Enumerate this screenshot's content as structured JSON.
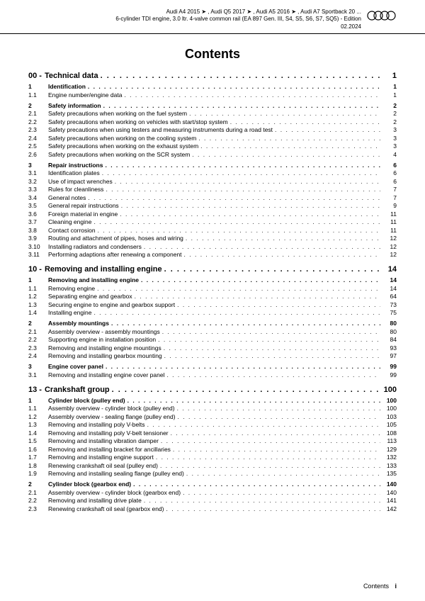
{
  "header": {
    "line1": "Audi A4 2015 ➤ , Audi Q5 2017 ➤ , Audi A5 2016 ➤ , Audi A7 Sportback 20 ...",
    "line2": "6-cylinder TDI engine, 3.0 ltr. 4-valve common rail (EA 897 Gen. III, S4, S5, S6, S7, SQ5) - Edition",
    "line3": "02.2024"
  },
  "title": "Contents",
  "sections": [
    {
      "num": "00 -",
      "title": "Technical data",
      "page": "1",
      "items": [
        {
          "n": "1",
          "t": "Identification",
          "p": "1",
          "b": true,
          "g": false
        },
        {
          "n": "1.1",
          "t": "Engine number/engine data",
          "p": "1",
          "b": false,
          "g": false
        },
        {
          "n": "2",
          "t": "Safety information",
          "p": "2",
          "b": true,
          "g": true
        },
        {
          "n": "2.1",
          "t": "Safety precautions when working on the fuel system",
          "p": "2",
          "b": false,
          "g": false
        },
        {
          "n": "2.2",
          "t": "Safety precautions when working on vehicles with start/stop system",
          "p": "2",
          "b": false,
          "g": false
        },
        {
          "n": "2.3",
          "t": "Safety precautions when using testers and measuring instruments during a road test",
          "p": "3",
          "b": false,
          "g": false
        },
        {
          "n": "2.4",
          "t": "Safety precautions when working on the cooling system",
          "p": "3",
          "b": false,
          "g": false
        },
        {
          "n": "2.5",
          "t": "Safety precautions when working on the exhaust system",
          "p": "3",
          "b": false,
          "g": false
        },
        {
          "n": "2.6",
          "t": "Safety precautions when working on the SCR system",
          "p": "4",
          "b": false,
          "g": false
        },
        {
          "n": "3",
          "t": "Repair instructions",
          "p": "6",
          "b": true,
          "g": true
        },
        {
          "n": "3.1",
          "t": "Identification plates",
          "p": "6",
          "b": false,
          "g": false
        },
        {
          "n": "3.2",
          "t": "Use of impact wrenches",
          "p": "6",
          "b": false,
          "g": false
        },
        {
          "n": "3.3",
          "t": "Rules for cleanliness",
          "p": "7",
          "b": false,
          "g": false
        },
        {
          "n": "3.4",
          "t": "General notes",
          "p": "7",
          "b": false,
          "g": false
        },
        {
          "n": "3.5",
          "t": "General repair instructions",
          "p": "9",
          "b": false,
          "g": false
        },
        {
          "n": "3.6",
          "t": "Foreign material in engine",
          "p": "11",
          "b": false,
          "g": false
        },
        {
          "n": "3.7",
          "t": "Cleaning engine",
          "p": "11",
          "b": false,
          "g": false
        },
        {
          "n": "3.8",
          "t": "Contact corrosion",
          "p": "11",
          "b": false,
          "g": false
        },
        {
          "n": "3.9",
          "t": "Routing and attachment of pipes, hoses and wiring",
          "p": "12",
          "b": false,
          "g": false
        },
        {
          "n": "3.10",
          "t": "Installing radiators and condensers",
          "p": "12",
          "b": false,
          "g": false
        },
        {
          "n": "3.11",
          "t": "Performing adaptions after renewing a component",
          "p": "12",
          "b": false,
          "g": false
        }
      ]
    },
    {
      "num": "10 -",
      "title": "Removing and installing engine",
      "page": "14",
      "items": [
        {
          "n": "1",
          "t": "Removing and installing engine",
          "p": "14",
          "b": true,
          "g": false
        },
        {
          "n": "1.1",
          "t": "Removing engine",
          "p": "14",
          "b": false,
          "g": false
        },
        {
          "n": "1.2",
          "t": "Separating engine and gearbox",
          "p": "64",
          "b": false,
          "g": false
        },
        {
          "n": "1.3",
          "t": "Securing engine to engine and gearbox support",
          "p": "73",
          "b": false,
          "g": false
        },
        {
          "n": "1.4",
          "t": "Installing engine",
          "p": "75",
          "b": false,
          "g": false
        },
        {
          "n": "2",
          "t": "Assembly mountings",
          "p": "80",
          "b": true,
          "g": true
        },
        {
          "n": "2.1",
          "t": "Assembly overview - assembly mountings",
          "p": "80",
          "b": false,
          "g": false
        },
        {
          "n": "2.2",
          "t": "Supporting engine in installation position",
          "p": "84",
          "b": false,
          "g": false
        },
        {
          "n": "2.3",
          "t": "Removing and installing engine mountings",
          "p": "93",
          "b": false,
          "g": false
        },
        {
          "n": "2.4",
          "t": "Removing and installing gearbox mounting",
          "p": "97",
          "b": false,
          "g": false
        },
        {
          "n": "3",
          "t": "Engine cover panel",
          "p": "99",
          "b": true,
          "g": true
        },
        {
          "n": "3.1",
          "t": "Removing and installing engine cover panel",
          "p": "99",
          "b": false,
          "g": false
        }
      ]
    },
    {
      "num": "13 -",
      "title": "Crankshaft group",
      "page": "100",
      "items": [
        {
          "n": "1",
          "t": "Cylinder block (pulley end)",
          "p": "100",
          "b": true,
          "g": false
        },
        {
          "n": "1.1",
          "t": "Assembly overview - cylinder block (pulley end)",
          "p": "100",
          "b": false,
          "g": false
        },
        {
          "n": "1.2",
          "t": "Assembly overview - sealing flange (pulley end)",
          "p": "103",
          "b": false,
          "g": false
        },
        {
          "n": "1.3",
          "t": "Removing and installing poly V-belts",
          "p": "105",
          "b": false,
          "g": false
        },
        {
          "n": "1.4",
          "t": "Removing and installing poly V-belt tensioner",
          "p": "108",
          "b": false,
          "g": false
        },
        {
          "n": "1.5",
          "t": "Removing and installing vibration damper",
          "p": "113",
          "b": false,
          "g": false
        },
        {
          "n": "1.6",
          "t": "Removing and installing bracket for ancillaries",
          "p": "129",
          "b": false,
          "g": false
        },
        {
          "n": "1.7",
          "t": "Removing and installing engine support",
          "p": "132",
          "b": false,
          "g": false
        },
        {
          "n": "1.8",
          "t": "Renewing crankshaft oil seal (pulley end)",
          "p": "133",
          "b": false,
          "g": false
        },
        {
          "n": "1.9",
          "t": "Removing and installing sealing flange (pulley end)",
          "p": "135",
          "b": false,
          "g": false
        },
        {
          "n": "2",
          "t": "Cylinder block (gearbox end)",
          "p": "140",
          "b": true,
          "g": true
        },
        {
          "n": "2.1",
          "t": "Assembly overview - cylinder block (gearbox end)",
          "p": "140",
          "b": false,
          "g": false
        },
        {
          "n": "2.2",
          "t": "Removing and installing drive plate",
          "p": "141",
          "b": false,
          "g": false
        },
        {
          "n": "2.3",
          "t": "Renewing crankshaft oil seal (gearbox end)",
          "p": "142",
          "b": false,
          "g": false
        }
      ]
    }
  ],
  "footer": {
    "label": "Contents",
    "page": "i"
  }
}
